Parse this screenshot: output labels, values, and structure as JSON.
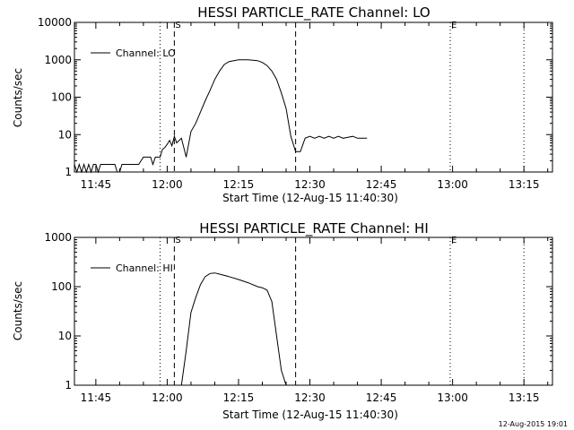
{
  "footer_timestamp": "12-Aug-2015 19:01",
  "chart_data": [
    {
      "type": "line",
      "title": "HESSI PARTICLE_RATE Channel: LO",
      "xlabel": "Start Time (12-Aug-15 11:40:30)",
      "ylabel": "Counts/sec",
      "yscale": "log",
      "ylim": [
        1,
        10000
      ],
      "xlim": [
        "11:40:30",
        "13:21:00"
      ],
      "xticks": [
        "11:45",
        "12:00",
        "12:15",
        "12:30",
        "12:45",
        "13:00",
        "13:15"
      ],
      "yticks": [
        "1",
        "10",
        "100",
        "1000",
        "10000"
      ],
      "legend": {
        "position": "top-left",
        "entries": [
          "Channel: LO"
        ]
      },
      "markers": [
        {
          "time": "11:58:30",
          "style": "dotted",
          "label": ""
        },
        {
          "time": "12:01:30",
          "style": "dashed",
          "label": "S"
        },
        {
          "time": "12:27:00",
          "style": "dashed",
          "label": ""
        },
        {
          "time": "12:59:30",
          "style": "dotted",
          "label": "E"
        },
        {
          "time": "13:15:00",
          "style": "dotted",
          "label": ""
        }
      ],
      "series": [
        {
          "name": "Channel: LO",
          "x": [
            "11:40:30",
            "11:41:00",
            "11:41:30",
            "11:42:00",
            "11:42:30",
            "11:43:00",
            "11:43:30",
            "11:44:00",
            "11:44:30",
            "11:45:00",
            "11:45:30",
            "11:46:00",
            "11:46:30",
            "11:47:00",
            "11:47:30",
            "11:48:00",
            "11:48:30",
            "11:49:00",
            "11:49:30",
            "11:50:00",
            "11:50:30",
            "11:51:00",
            "11:51:30",
            "11:52:00",
            "11:52:30",
            "11:53:00",
            "11:54:00",
            "11:55:00",
            "11:55:30",
            "11:56:00",
            "11:56:30",
            "11:57:00",
            "11:57:30",
            "11:58:00",
            "11:58:30",
            "11:59:00",
            "11:59:30",
            "12:00:00",
            "12:00:30",
            "12:01:00",
            "12:01:30",
            "12:02:00",
            "12:03:00",
            "12:04:00",
            "12:05:00",
            "12:06:00",
            "12:07:00",
            "12:08:00",
            "12:09:00",
            "12:10:00",
            "12:11:00",
            "12:12:00",
            "12:13:00",
            "12:15:00",
            "12:17:00",
            "12:19:00",
            "12:20:00",
            "12:21:00",
            "12:22:00",
            "12:23:00",
            "12:24:00",
            "12:25:00",
            "12:26:00",
            "12:27:00",
            "12:28:00",
            "12:29:00",
            "12:30:00",
            "12:31:00",
            "12:32:00",
            "12:33:00",
            "12:34:00",
            "12:35:00",
            "12:36:00",
            "12:37:00",
            "12:38:00",
            "12:39:00",
            "12:40:00",
            "12:41:00",
            "12:42:00"
          ],
          "y": [
            1.6,
            1,
            1.6,
            1,
            1.6,
            1,
            1.6,
            1,
            1.6,
            1.6,
            1,
            1.6,
            1.6,
            1.6,
            1.6,
            1.6,
            1.6,
            1.6,
            1,
            1,
            1.6,
            1.6,
            1.6,
            1.6,
            1.6,
            1.6,
            1.6,
            2.5,
            2.5,
            2.5,
            2.5,
            1.6,
            2.5,
            2.5,
            2.5,
            4,
            4.5,
            5.5,
            7,
            5,
            9,
            6,
            8,
            2.5,
            12,
            20,
            40,
            80,
            150,
            300,
            500,
            750,
            900,
            1000,
            1000,
            950,
            850,
            700,
            500,
            300,
            130,
            50,
            9,
            3.5,
            3.5,
            8,
            9,
            8,
            9,
            8,
            9,
            8,
            9,
            8,
            8.5,
            9,
            8,
            8,
            8
          ]
        }
      ]
    },
    {
      "type": "line",
      "title": "HESSI PARTICLE_RATE Channel: HI",
      "xlabel": "Start Time (12-Aug-15 11:40:30)",
      "ylabel": "Counts/sec",
      "yscale": "log",
      "ylim": [
        1,
        1000
      ],
      "xlim": [
        "11:40:30",
        "13:21:00"
      ],
      "xticks": [
        "11:45",
        "12:00",
        "12:15",
        "12:30",
        "12:45",
        "13:00",
        "13:15"
      ],
      "yticks": [
        "1",
        "10",
        "100",
        "1000"
      ],
      "legend": {
        "position": "top-left",
        "entries": [
          "Channel: HI"
        ]
      },
      "markers": [
        {
          "time": "11:58:30",
          "style": "dotted",
          "label": ""
        },
        {
          "time": "12:01:30",
          "style": "dashed",
          "label": "S"
        },
        {
          "time": "12:27:00",
          "style": "dashed",
          "label": ""
        },
        {
          "time": "12:59:30",
          "style": "dotted",
          "label": "E"
        },
        {
          "time": "13:15:00",
          "style": "dotted",
          "label": ""
        }
      ],
      "series": [
        {
          "name": "Channel: HI",
          "x": [
            "12:03:00",
            "12:04:00",
            "12:05:00",
            "12:06:00",
            "12:07:00",
            "12:08:00",
            "12:09:00",
            "12:10:00",
            "12:11:00",
            "12:13:00",
            "12:15:00",
            "12:17:00",
            "12:19:00",
            "12:20:00",
            "12:21:00",
            "12:22:00",
            "12:23:00",
            "12:24:00",
            "12:25:00"
          ],
          "y": [
            1,
            5,
            30,
            60,
            110,
            160,
            185,
            190,
            180,
            160,
            140,
            120,
            100,
            95,
            85,
            50,
            10,
            2,
            1
          ]
        }
      ]
    }
  ]
}
